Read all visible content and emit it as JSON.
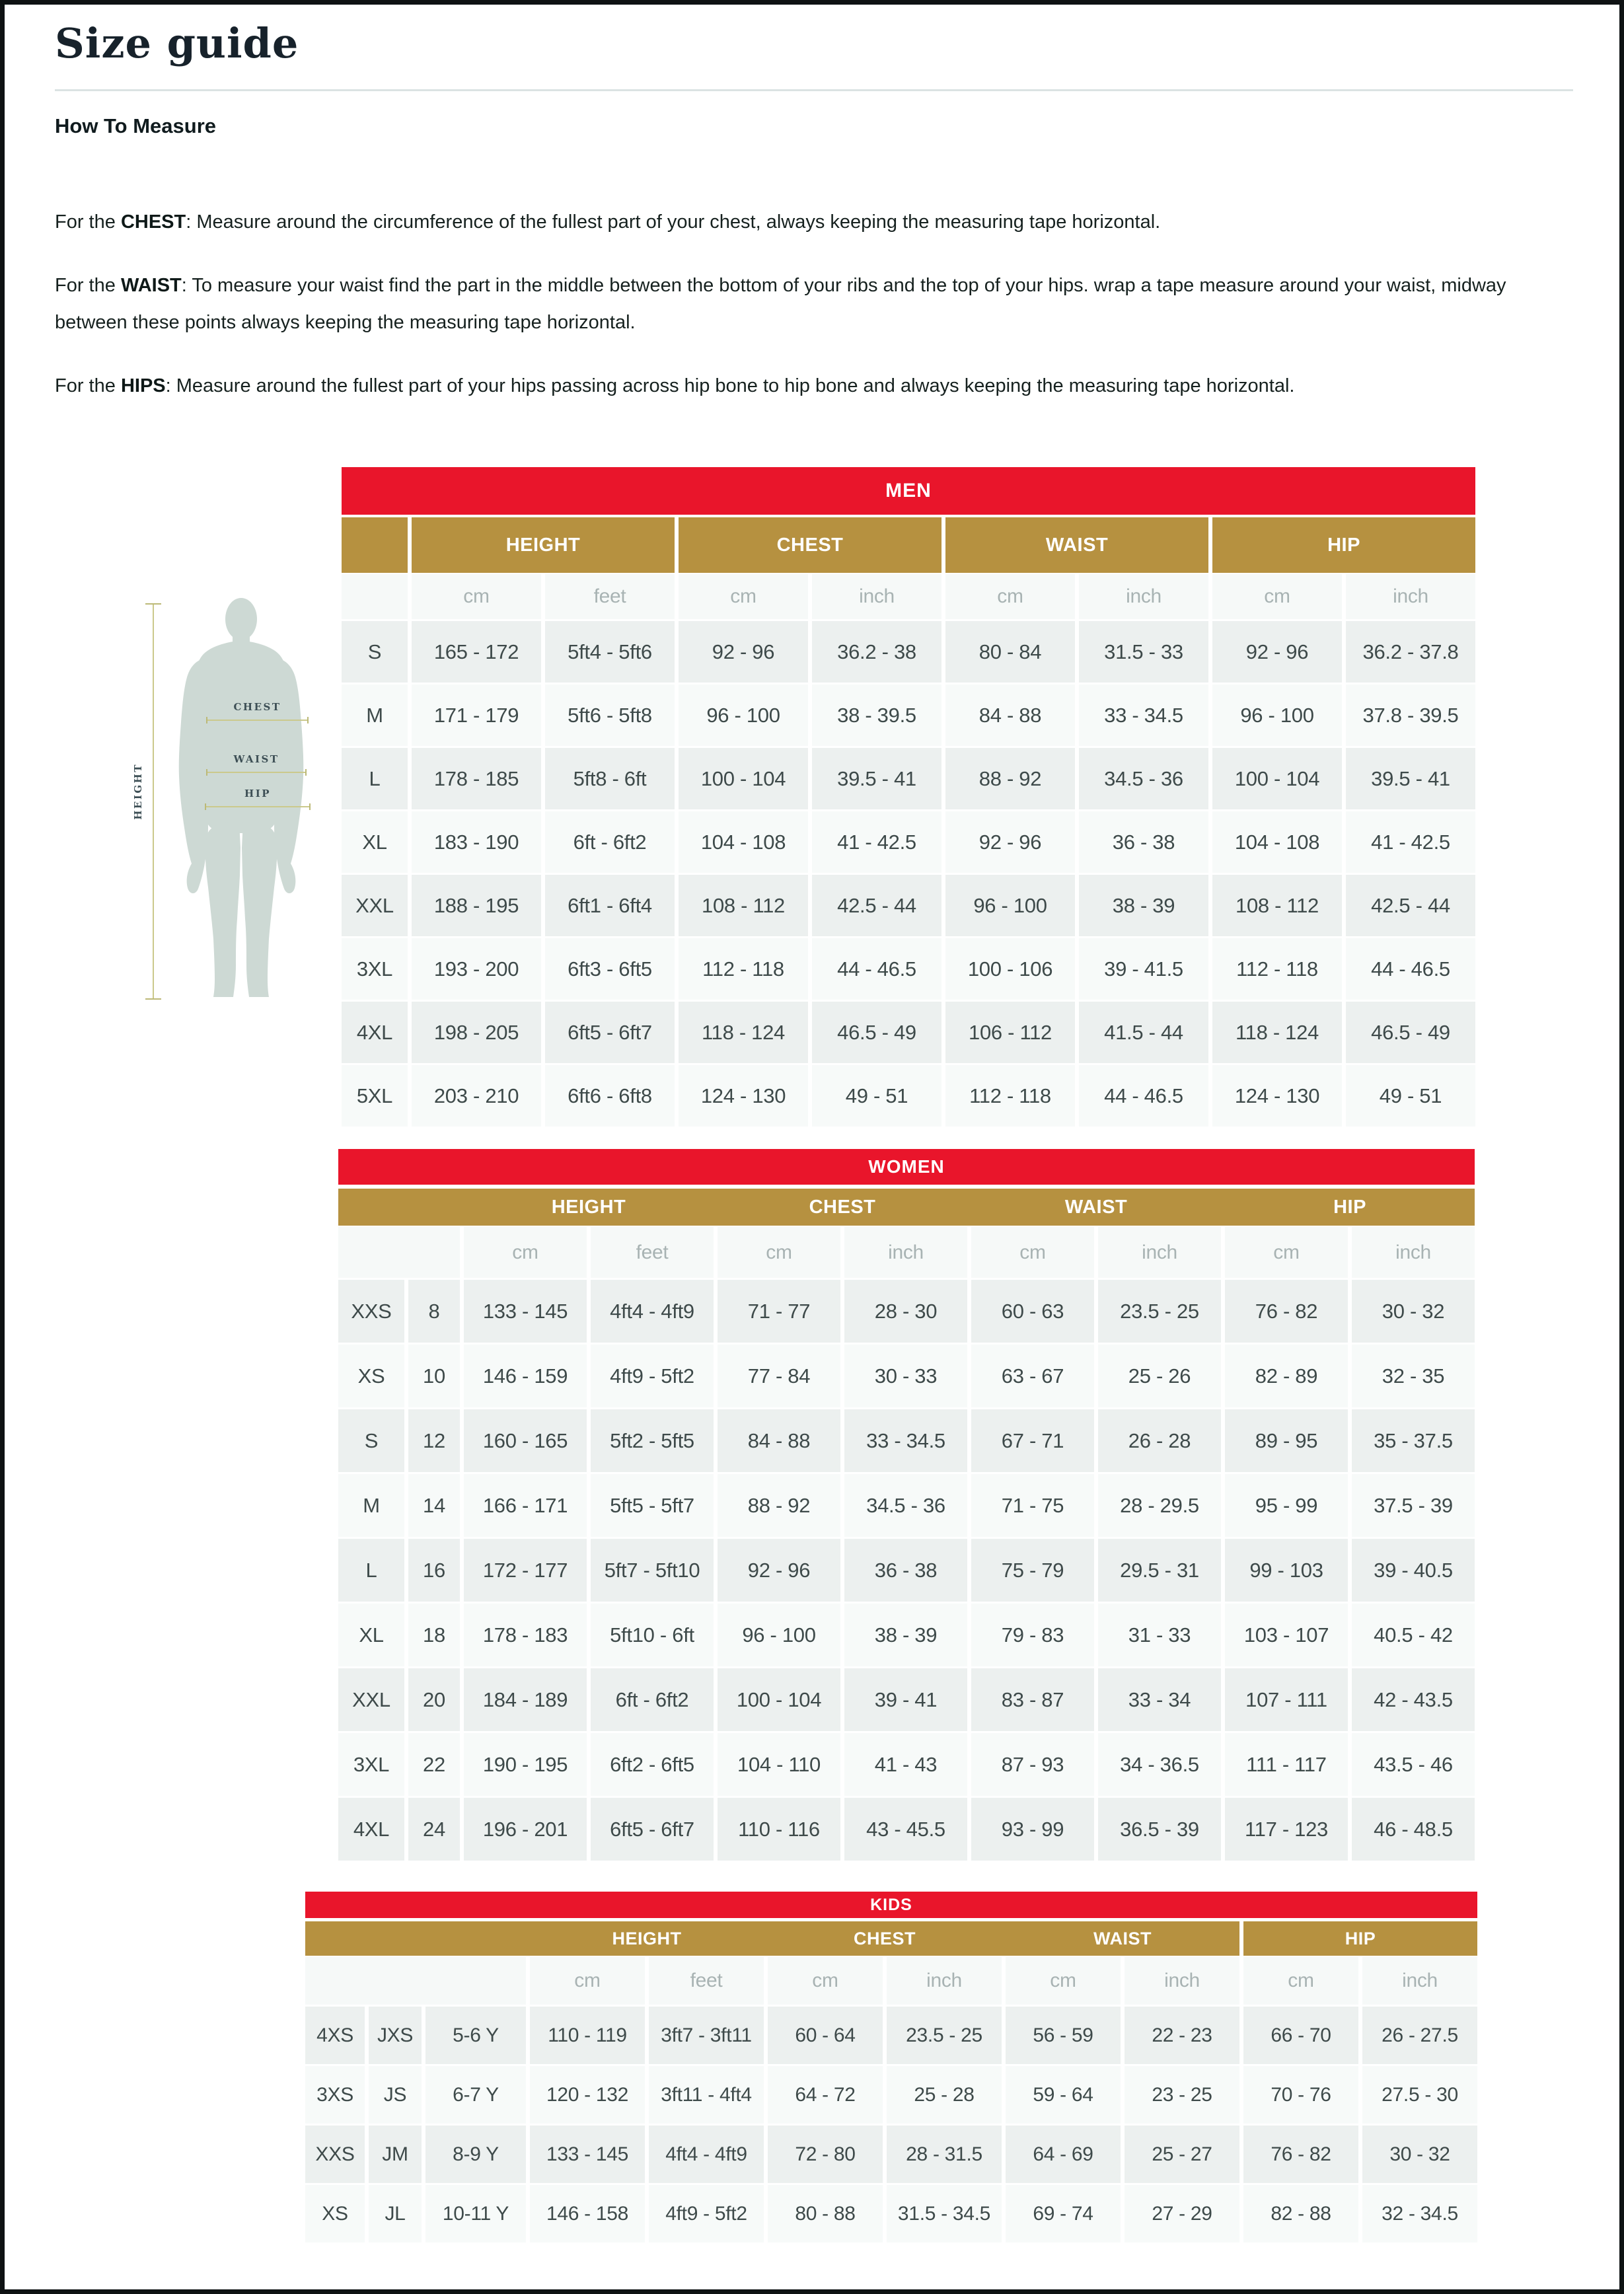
{
  "page": {
    "title": "Size guide",
    "section_heading": "How To Measure",
    "paragraphs": [
      {
        "prefix": "For the ",
        "term": "CHEST",
        "text": ": Measure around the circumference of the fullest part of your chest, always keeping the measuring tape horizontal."
      },
      {
        "prefix": "For the ",
        "term": "WAIST",
        "text": ": To measure your waist find the part in the middle between the bottom of your ribs and the top of your hips. wrap a tape measure around your waist, midway between these points always keeping the measuring tape horizontal."
      },
      {
        "prefix": "For the ",
        "term": "HIPS",
        "text": ": Measure around the fullest part of your hips passing across hip bone to hip bone and always keeping the measuring tape horizontal."
      }
    ]
  },
  "figure": {
    "height_label": "HEIGHT",
    "chest_label": "CHEST",
    "waist_label": "WAIST",
    "hip_label": "HIP"
  },
  "colors": {
    "header_red": "#e9152b",
    "header_gold": "#b69140",
    "row_gray": "#ecf0ef",
    "row_white": "#f7faf9",
    "cell_text": "#3e4a4a",
    "unit_text": "#a8b3b3",
    "silhouette": "#cdd9d4",
    "measure_line": "#cbc98c"
  },
  "tables": [
    {
      "id": "men",
      "title": "MEN",
      "lead_columns": 1,
      "gold_continuous": false,
      "hip_separator": false,
      "groups": [
        "HEIGHT",
        "CHEST",
        "WAIST",
        "HIP"
      ],
      "units": [
        "cm",
        "feet",
        "cm",
        "inch",
        "cm",
        "inch",
        "cm",
        "inch"
      ],
      "rows": [
        [
          "S",
          "165 - 172",
          "5ft4 - 5ft6",
          "92 - 96",
          "36.2 - 38",
          "80 - 84",
          "31.5 - 33",
          "92 - 96",
          "36.2 - 37.8"
        ],
        [
          "M",
          "171 - 179",
          "5ft6 - 5ft8",
          "96 - 100",
          "38 - 39.5",
          "84 - 88",
          "33 - 34.5",
          "96 - 100",
          "37.8 - 39.5"
        ],
        [
          "L",
          "178 - 185",
          "5ft8 - 6ft",
          "100 - 104",
          "39.5 - 41",
          "88 - 92",
          "34.5 - 36",
          "100 - 104",
          "39.5 - 41"
        ],
        [
          "XL",
          "183 - 190",
          "6ft - 6ft2",
          "104 - 108",
          "41 - 42.5",
          "92 - 96",
          "36 - 38",
          "104 - 108",
          "41 - 42.5"
        ],
        [
          "XXL",
          "188 - 195",
          "6ft1 - 6ft4",
          "108 - 112",
          "42.5 - 44",
          "96 - 100",
          "38 - 39",
          "108 - 112",
          "42.5 - 44"
        ],
        [
          "3XL",
          "193 - 200",
          "6ft3 - 6ft5",
          "112 - 118",
          "44 - 46.5",
          "100 - 106",
          "39 - 41.5",
          "112 - 118",
          "44 - 46.5"
        ],
        [
          "4XL",
          "198 - 205",
          "6ft5 - 6ft7",
          "118 - 124",
          "46.5 - 49",
          "106 - 112",
          "41.5 - 44",
          "118 - 124",
          "46.5 - 49"
        ],
        [
          "5XL",
          "203 - 210",
          "6ft6 - 6ft8",
          "124 - 130",
          "49 - 51",
          "112 - 118",
          "44 - 46.5",
          "124 - 130",
          "49 - 51"
        ]
      ]
    },
    {
      "id": "women",
      "title": "WOMEN",
      "lead_columns": 2,
      "gold_continuous": true,
      "hip_separator": false,
      "groups": [
        "HEIGHT",
        "CHEST",
        "WAIST",
        "HIP"
      ],
      "units": [
        "cm",
        "feet",
        "cm",
        "inch",
        "cm",
        "inch",
        "cm",
        "inch"
      ],
      "rows": [
        [
          "XXS",
          "8",
          "133 - 145",
          "4ft4 - 4ft9",
          "71 - 77",
          "28 - 30",
          "60 - 63",
          "23.5 - 25",
          "76 - 82",
          "30 - 32"
        ],
        [
          "XS",
          "10",
          "146 - 159",
          "4ft9 - 5ft2",
          "77 - 84",
          "30 - 33",
          "63 - 67",
          "25 - 26",
          "82 - 89",
          "32 - 35"
        ],
        [
          "S",
          "12",
          "160 - 165",
          "5ft2 - 5ft5",
          "84 - 88",
          "33 - 34.5",
          "67 - 71",
          "26 - 28",
          "89 - 95",
          "35 - 37.5"
        ],
        [
          "M",
          "14",
          "166 - 171",
          "5ft5 - 5ft7",
          "88 - 92",
          "34.5 - 36",
          "71 - 75",
          "28 - 29.5",
          "95 - 99",
          "37.5 - 39"
        ],
        [
          "L",
          "16",
          "172 - 177",
          "5ft7 - 5ft10",
          "92 - 96",
          "36 - 38",
          "75 - 79",
          "29.5 - 31",
          "99 - 103",
          "39 - 40.5"
        ],
        [
          "XL",
          "18",
          "178 - 183",
          "5ft10 - 6ft",
          "96 - 100",
          "38 - 39",
          "79 - 83",
          "31 - 33",
          "103 - 107",
          "40.5 - 42"
        ],
        [
          "XXL",
          "20",
          "184 - 189",
          "6ft - 6ft2",
          "100 - 104",
          "39 - 41",
          "83 - 87",
          "33 - 34",
          "107 - 111",
          "42 - 43.5"
        ],
        [
          "3XL",
          "22",
          "190 - 195",
          "6ft2 - 6ft5",
          "104 - 110",
          "41 - 43",
          "87 - 93",
          "34 - 36.5",
          "111 - 117",
          "43.5 - 46"
        ],
        [
          "4XL",
          "24",
          "196 - 201",
          "6ft5 - 6ft7",
          "110 - 116",
          "43 - 45.5",
          "93 - 99",
          "36.5 - 39",
          "117 - 123",
          "46 - 48.5"
        ]
      ]
    },
    {
      "id": "kids",
      "title": "KIDS",
      "lead_columns": 3,
      "gold_continuous": true,
      "hip_separator": true,
      "groups": [
        "HEIGHT",
        "CHEST",
        "WAIST",
        "HIP"
      ],
      "units": [
        "cm",
        "feet",
        "cm",
        "inch",
        "cm",
        "inch",
        "cm",
        "inch"
      ],
      "rows": [
        [
          "4XS",
          "JXS",
          "5-6 Y",
          "110 - 119",
          "3ft7 - 3ft11",
          "60 - 64",
          "23.5 - 25",
          "56 - 59",
          "22 - 23",
          "66 - 70",
          "26 - 27.5"
        ],
        [
          "3XS",
          "JS",
          "6-7 Y",
          "120 - 132",
          "3ft11 - 4ft4",
          "64 - 72",
          "25 - 28",
          "59 - 64",
          "23 - 25",
          "70 - 76",
          "27.5 - 30"
        ],
        [
          "XXS",
          "JM",
          "8-9 Y",
          "133 - 145",
          "4ft4 - 4ft9",
          "72 - 80",
          "28 - 31.5",
          "64 - 69",
          "25 - 27",
          "76 - 82",
          "30 - 32"
        ],
        [
          "XS",
          "JL",
          "10-11 Y",
          "146 - 158",
          "4ft9 - 5ft2",
          "80 - 88",
          "31.5 - 34.5",
          "69 - 74",
          "27 - 29",
          "82 - 88",
          "32 - 34.5"
        ]
      ]
    }
  ]
}
